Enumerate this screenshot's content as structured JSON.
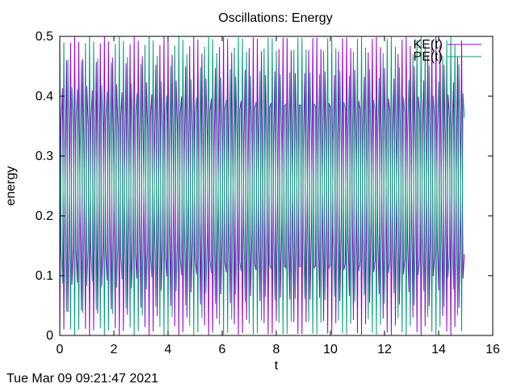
{
  "chart_data": {
    "type": "line",
    "title": "Oscillations: Energy",
    "xlabel": "t",
    "ylabel": "energy",
    "xlim": [
      0,
      16
    ],
    "ylim": [
      0,
      0.5
    ],
    "xticks": [
      "0",
      "2",
      "4",
      "6",
      "8",
      "10",
      "12",
      "14",
      "16"
    ],
    "yticks": [
      "0",
      "0.1",
      "0.2",
      "0.3",
      "0.4",
      "0.5"
    ],
    "grid": false,
    "legend_position": "top-right",
    "sample_step": 0.05,
    "x_end": 14.95,
    "series": [
      {
        "name": "KE(t)",
        "color": "#9400d3",
        "formula": "0.5*sin^2(t/0.05)"
      },
      {
        "name": "PE(t)",
        "color": "#009e73",
        "formula": "0.5*cos^2(t/0.05)"
      }
    ]
  },
  "footer": {
    "timestamp": "Tue Mar 09 09:21:47 2021"
  }
}
